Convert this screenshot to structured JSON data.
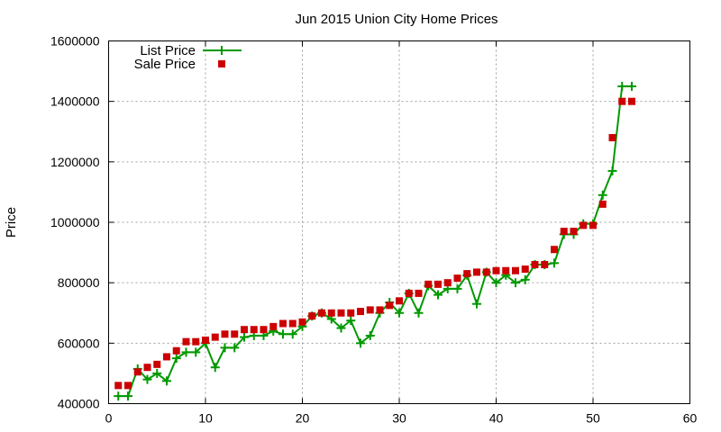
{
  "chart_data": {
    "type": "line",
    "title": "Jun 2015 Union City Home Prices",
    "xlabel": "",
    "ylabel": "Price",
    "xlim": [
      0,
      60
    ],
    "ylim": [
      400000,
      1600000
    ],
    "x_ticks": [
      "0",
      "10",
      "20",
      "30",
      "40",
      "50",
      "60"
    ],
    "y_ticks": [
      "400000",
      "600000",
      "800000",
      "1000000",
      "1200000",
      "1400000",
      "1600000"
    ],
    "grid": true,
    "legend_position": "top-left",
    "x": [
      1,
      2,
      3,
      4,
      5,
      6,
      7,
      8,
      9,
      10,
      11,
      12,
      13,
      14,
      15,
      16,
      17,
      18,
      19,
      20,
      21,
      22,
      23,
      24,
      25,
      26,
      27,
      28,
      29,
      30,
      31,
      32,
      33,
      34,
      35,
      36,
      37,
      38,
      39,
      40,
      41,
      42,
      43,
      44,
      45,
      46,
      47,
      48,
      49,
      50,
      51,
      52,
      53,
      54
    ],
    "series": [
      {
        "name": "List Price",
        "style": "line-plus",
        "color": "#009900",
        "values": [
          425000,
          425000,
          515000,
          480000,
          500000,
          475000,
          550000,
          570000,
          570000,
          600000,
          520000,
          585000,
          585000,
          620000,
          625000,
          625000,
          640000,
          630000,
          630000,
          655000,
          690000,
          700000,
          680000,
          650000,
          675000,
          600000,
          625000,
          700000,
          735000,
          700000,
          765000,
          700000,
          790000,
          760000,
          780000,
          780000,
          825000,
          730000,
          835000,
          800000,
          825000,
          800000,
          810000,
          860000,
          860000,
          865000,
          960000,
          960000,
          995000,
          995000,
          1090000,
          1170000,
          1450000,
          1450000
        ]
      },
      {
        "name": "Sale Price",
        "style": "square",
        "color": "#cc0000",
        "values": [
          460000,
          460000,
          505000,
          520000,
          530000,
          555000,
          575000,
          605000,
          605000,
          610000,
          620000,
          630000,
          630000,
          645000,
          645000,
          645000,
          655000,
          665000,
          665000,
          670000,
          690000,
          700000,
          700000,
          700000,
          700000,
          705000,
          710000,
          710000,
          725000,
          740000,
          765000,
          765000,
          795000,
          795000,
          800000,
          815000,
          830000,
          835000,
          835000,
          840000,
          840000,
          840000,
          845000,
          860000,
          860000,
          910000,
          970000,
          970000,
          990000,
          990000,
          1060000,
          1280000,
          1400000,
          1400000
        ]
      }
    ]
  }
}
